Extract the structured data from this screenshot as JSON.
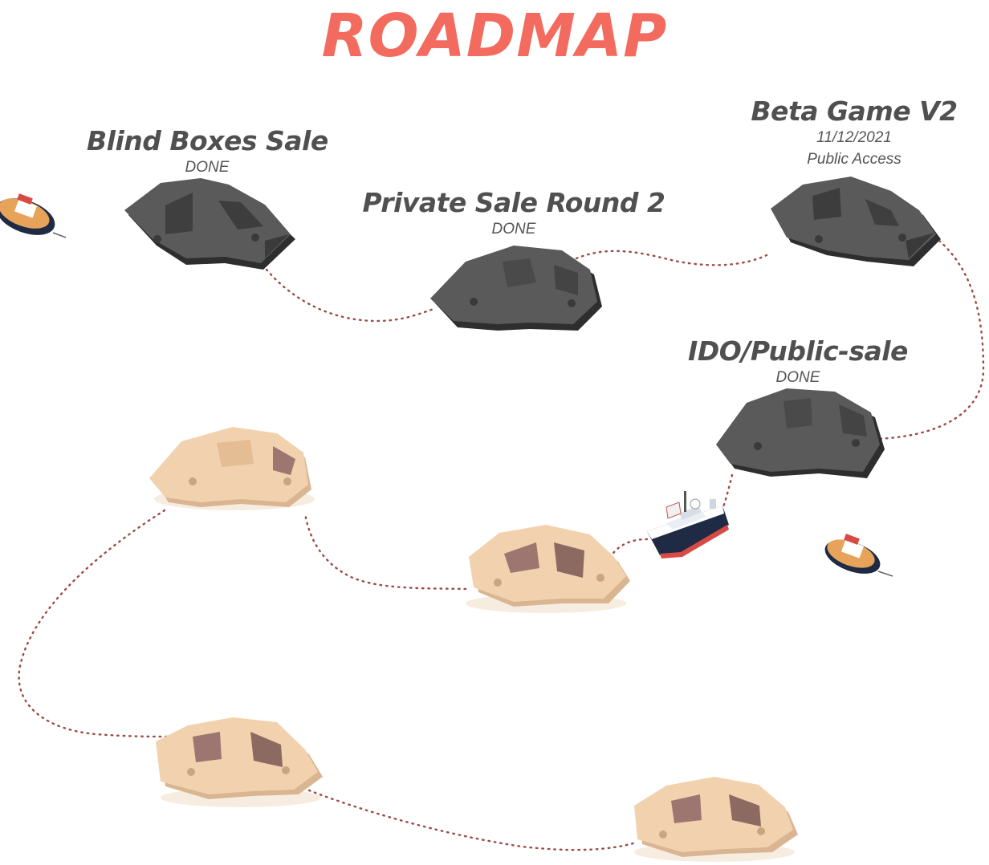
{
  "title": "ROADMAP",
  "milestones": [
    {
      "name": "Blind Boxes Sale",
      "status": "DONE"
    },
    {
      "name": "Private Sale Round 2",
      "status": "DONE"
    },
    {
      "name": "Beta Game V2",
      "date": "11/12/2021",
      "note": "Public Access"
    },
    {
      "name": "IDO/Public-sale",
      "status": "DONE"
    }
  ],
  "colors": {
    "title": "#f36a5e",
    "done_island": "#5a5a5a",
    "upcoming_island": "#f2d2ae",
    "path": "#9a4a44",
    "heading_text": "#505050"
  }
}
